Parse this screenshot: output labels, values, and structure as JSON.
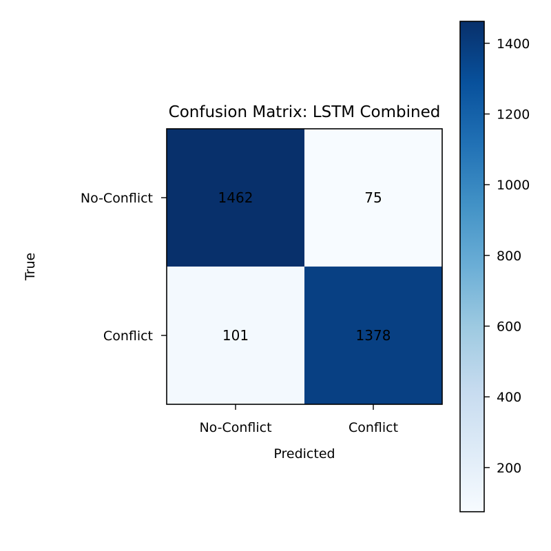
{
  "chart_data": {
    "type": "heatmap",
    "title": "Confusion Matrix: LSTM Combined",
    "xlabel": "Predicted",
    "ylabel": "True",
    "x_categories": [
      "No-Conflict",
      "Conflict"
    ],
    "y_categories": [
      "No-Conflict",
      "Conflict"
    ],
    "values": [
      [
        1462,
        75
      ],
      [
        101,
        1378
      ]
    ],
    "colormap": "Blues",
    "color_range": [
      75,
      1462
    ],
    "colorbar_ticks": [
      200,
      400,
      600,
      800,
      1000,
      1200,
      1400
    ],
    "colors": {
      "low": "#f7fbff",
      "high": "#08306b"
    },
    "grid": false
  }
}
